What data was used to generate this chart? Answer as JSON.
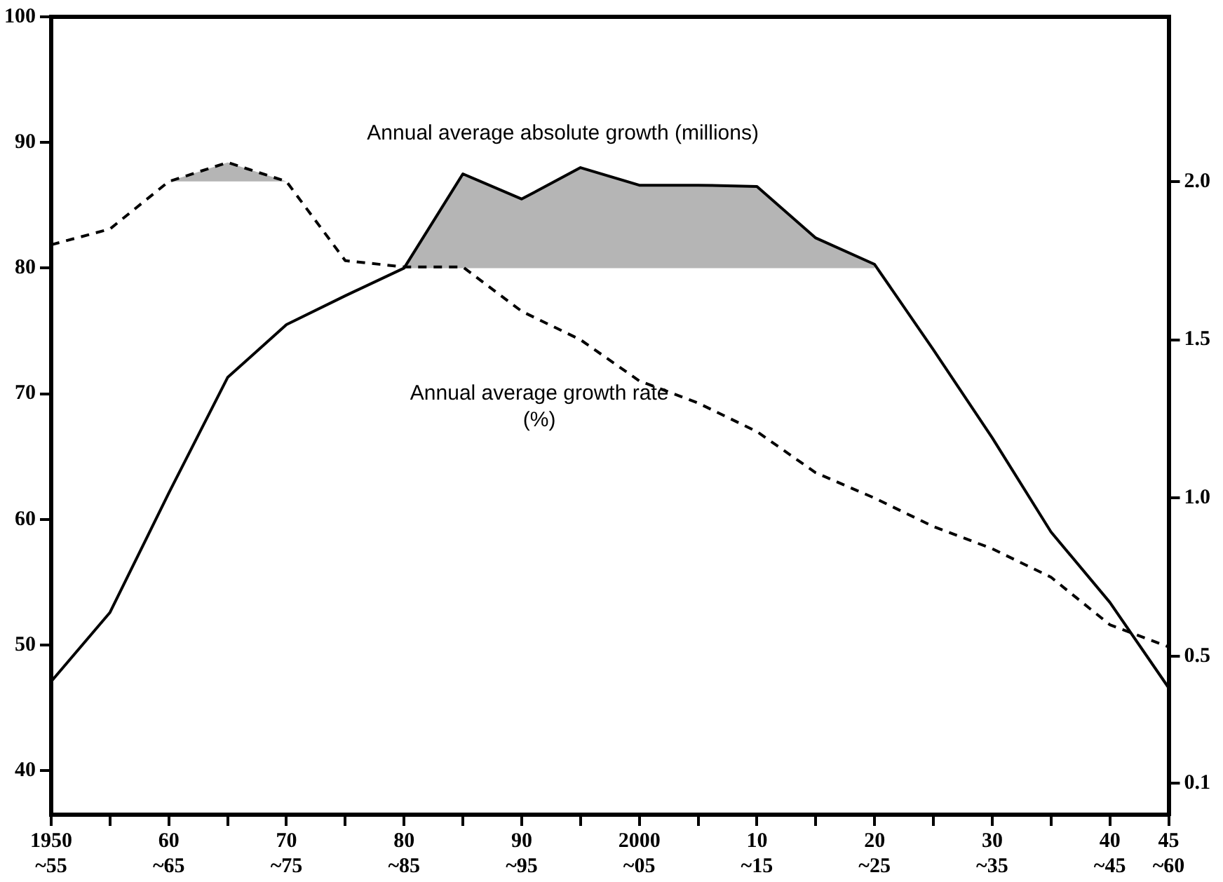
{
  "chart_data": {
    "type": "line",
    "categories": [
      "1950\n~55",
      null,
      "60\n~65",
      null,
      "70\n~75",
      null,
      "80\n~85",
      null,
      "90\n~95",
      null,
      "2000\n~05",
      null,
      "10\n~15",
      null,
      "20\n~25",
      null,
      "30\n~35",
      null,
      "40\n~45",
      "45\n~60"
    ],
    "series": [
      {
        "name": "Annual average absolute growth (millions)",
        "color": "#000000",
        "line_style": "solid",
        "values": [
          47.1,
          52.6,
          62.1,
          71.3,
          75.5,
          77.8,
          80.0,
          87.5,
          85.5,
          88.0,
          86.6,
          86.6,
          86.5,
          82.4,
          80.3,
          73.5,
          66.5,
          59.0,
          53.4,
          46.6
        ],
        "lower": [
          null,
          null,
          null,
          null,
          null,
          null,
          80,
          80,
          80,
          80,
          80,
          80,
          80,
          80,
          80,
          null,
          null,
          null,
          null,
          null
        ],
        "upper": [
          null,
          null,
          null,
          null,
          null,
          null,
          80.0,
          87.5,
          85.5,
          88.0,
          86.6,
          86.6,
          86.5,
          82.4,
          80.3,
          null,
          null,
          null,
          null,
          null
        ]
      },
      {
        "name": "Annual average growth rate (%)",
        "color": "#000000",
        "line_style": "dashed",
        "axis": "y2",
        "values": [
          1.8,
          1.85,
          2.0,
          2.06,
          2.0,
          1.75,
          1.73,
          1.73,
          1.59,
          1.5,
          1.37,
          1.3,
          1.21,
          1.08,
          1.0,
          0.91,
          0.84,
          0.75,
          0.6,
          0.53
        ],
        "lower": [
          null,
          null,
          2.0,
          2.0,
          2.0,
          null,
          null,
          null,
          null,
          null,
          null,
          null,
          null,
          null,
          null,
          null,
          null,
          null,
          null,
          null
        ],
        "upper": [
          null,
          null,
          2.0,
          2.06,
          2.0,
          null,
          null,
          null,
          null,
          null,
          null,
          null,
          null,
          null,
          null,
          null,
          null,
          null,
          null,
          null
        ]
      }
    ],
    "ylim": [
      36.5,
      100
    ],
    "yticks": [
      40,
      50,
      60,
      70,
      80,
      90,
      100
    ],
    "y2lim": [
      0,
      2.52
    ],
    "y2ticks": [
      {
        "value": 0.1,
        "label": "0.1"
      },
      {
        "value": 0.5,
        "label": "0.5"
      },
      {
        "value": 1,
        "label": "1.0"
      },
      {
        "value": 1.5,
        "label": "1.5"
      },
      {
        "value": 2,
        "label": "2.0"
      }
    ],
    "grid": false,
    "legend": false,
    "marker": "none"
  }
}
